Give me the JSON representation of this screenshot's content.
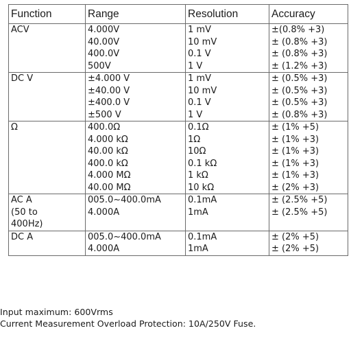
{
  "table": {
    "headers": [
      "Function",
      "Range",
      "Resolution",
      "Accuracy"
    ],
    "groups": [
      {
        "function": [
          "ACV"
        ],
        "ranges": [
          "4.000V",
          "40.00V",
          "400.0V",
          "500V"
        ],
        "resolutions": [
          "1 mV",
          "10 mV",
          "0.1 V",
          "1 V"
        ],
        "accuracies": [
          "±(0.8% +3)",
          "± (0.8% +3)",
          "± (0.8% +3)",
          "± (1.2% +3)"
        ]
      },
      {
        "function": [
          "DC V"
        ],
        "ranges": [
          "±4.000 V",
          "±40.00 V",
          "±400.0 V",
          "±500 V"
        ],
        "resolutions": [
          "1 mV",
          "10 mV",
          "0.1 V",
          "1 V"
        ],
        "accuracies": [
          "± (0.5% +3)",
          "± (0.5% +3)",
          "± (0.5% +3)",
          "± (0.8% +3)"
        ]
      },
      {
        "function": [
          "Ω"
        ],
        "ranges": [
          "400.0Ω",
          "4.000 kΩ",
          "40.00 kΩ",
          "400.0 kΩ",
          "4.000 MΩ",
          "40.00 MΩ"
        ],
        "resolutions": [
          "0.1Ω",
          "1Ω",
          "10Ω",
          "0.1 kΩ",
          "1 kΩ",
          "10 kΩ"
        ],
        "accuracies": [
          "± (1% +5)",
          "± (1% +3)",
          "± (1% +3)",
          "± (1% +3)",
          "± (1% +3)",
          "± (2% +3)"
        ]
      },
      {
        "function": [
          "AC A",
          "(50 to",
          "400Hz)"
        ],
        "ranges": [
          "005.0~400.0mA",
          "4.000A"
        ],
        "resolutions": [
          "0.1mA",
          "1mA"
        ],
        "accuracies": [
          "± (2.5% +5)",
          "± (2.5% +5)"
        ]
      },
      {
        "function": [
          "DC A"
        ],
        "ranges": [
          "005.0~400.0mA",
          "4.000A"
        ],
        "resolutions": [
          "0.1mA",
          "1mA"
        ],
        "accuracies": [
          "± (2% +5)",
          "± (2% +5)"
        ]
      }
    ]
  },
  "notes": [
    "Input maximum: 600Vrms",
    "Current Measurement Overload Protection: 10A/250V Fuse."
  ]
}
